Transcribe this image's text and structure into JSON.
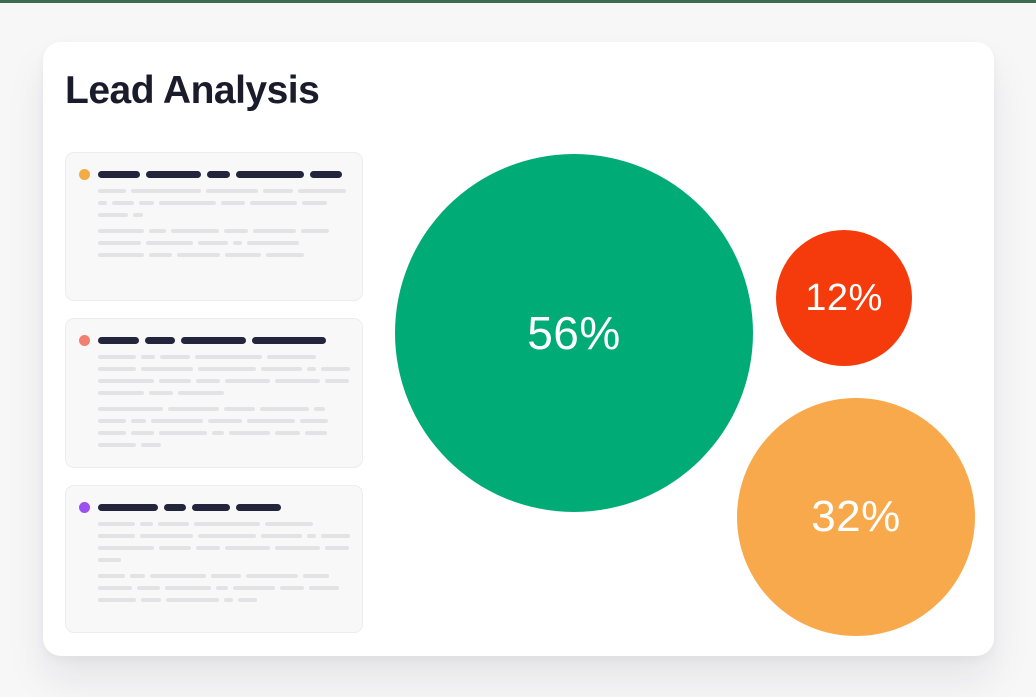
{
  "accent": {
    "top_bar_color": "#3e6b4f"
  },
  "card": {
    "title": "Lead Analysis"
  },
  "lead_items": [
    {
      "dot_color": "#f3ac44",
      "title_segments": [
        42,
        55,
        23,
        68,
        32
      ],
      "paragraphs": [
        [
          [
            28,
            70,
            52,
            30,
            48
          ],
          [
            9,
            22,
            15,
            57,
            24,
            47,
            25
          ],
          [
            30,
            10
          ]
        ],
        [
          [
            46,
            17,
            48,
            24,
            43,
            28
          ],
          [
            43,
            47,
            30,
            9,
            52
          ],
          [
            46,
            23,
            43,
            36,
            38
          ]
        ]
      ]
    },
    {
      "dot_color": "#f37f70",
      "title_segments": [
        41,
        30,
        65,
        74
      ],
      "paragraphs": [
        [
          [
            38,
            14,
            30,
            67,
            49
          ],
          [
            38,
            52,
            58,
            41,
            9,
            29
          ],
          [
            56,
            32,
            24,
            45,
            45,
            24
          ],
          [
            46,
            24,
            46
          ]
        ],
        [
          [
            65,
            51,
            31,
            49,
            11
          ],
          [
            28,
            15,
            52,
            34,
            48,
            28
          ],
          [
            28,
            23,
            48,
            12,
            41,
            25,
            22
          ],
          [
            38,
            20
          ]
        ]
      ]
    },
    {
      "dot_color": "#9b50ef",
      "title_segments": [
        60,
        22,
        38,
        45
      ],
      "paragraphs": [
        [
          [
            37,
            13,
            31,
            66,
            48
          ],
          [
            37,
            53,
            58,
            41,
            9,
            29
          ],
          [
            56,
            32,
            24,
            45,
            45,
            24
          ],
          [
            23
          ]
        ],
        [
          [
            27,
            15,
            56,
            30,
            52,
            26
          ],
          [
            34,
            23,
            46,
            12,
            42,
            24,
            30
          ],
          [
            38,
            20,
            53,
            9,
            19
          ]
        ]
      ]
    }
  ],
  "chart_data": {
    "type": "bubble",
    "title": "Lead Analysis",
    "unit": "%",
    "series": [
      {
        "name": "largest-segment",
        "label": "56%",
        "value": 56,
        "color": "#00ab75"
      },
      {
        "name": "smallest-segment",
        "label": "12%",
        "value": 12,
        "color": "#f53b0b"
      },
      {
        "name": "medium-segment",
        "label": "32%",
        "value": 32,
        "color": "#f7a94b"
      }
    ],
    "label_color": "#ffffff",
    "legend": "none",
    "axes": "none"
  }
}
